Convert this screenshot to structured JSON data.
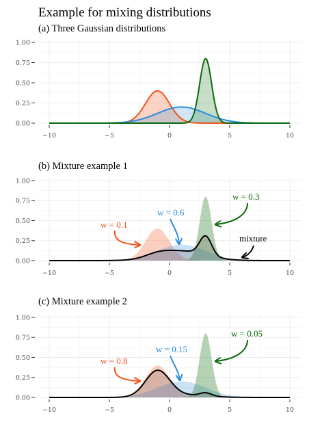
{
  "title": "Example for mixing distributions",
  "colors": {
    "red": "#f2541b",
    "blue": "#2b8cdc",
    "green": "#0a6b0a",
    "black": "#000000",
    "grid": "#ececec",
    "axis_text": "#4d4d4d"
  },
  "chart_data": [
    {
      "type": "area",
      "title": "(a) Three Gaussian distributions",
      "xlim": [
        -10,
        10
      ],
      "ylim": [
        0,
        1
      ],
      "x_ticks": [
        "−10",
        "−5",
        "0",
        "5",
        "10"
      ],
      "y_ticks": [
        "0.00",
        "0.25",
        "0.50",
        "0.75",
        "1.00"
      ],
      "grid": true,
      "series": [
        {
          "distribution": "normal",
          "mean": -1,
          "sd": 1,
          "peak": 0.4,
          "color": "red"
        },
        {
          "distribution": "normal",
          "mean": 1,
          "sd": 2,
          "peak": 0.2,
          "color": "blue"
        },
        {
          "distribution": "normal",
          "mean": 3,
          "sd": 0.5,
          "peak": 0.8,
          "color": "green"
        }
      ],
      "mixture": null
    },
    {
      "type": "area",
      "title": "(b) Mixture example 1",
      "xlim": [
        -10,
        10
      ],
      "ylim": [
        0,
        1
      ],
      "x_ticks": [
        "−10",
        "−5",
        "0",
        "5",
        "10"
      ],
      "y_ticks": [
        "0.00",
        "0.25",
        "0.50",
        "0.75",
        "1.00"
      ],
      "grid": true,
      "weights": [
        0.1,
        0.6,
        0.3
      ],
      "mixture_peak": 0.31,
      "annotations": [
        {
          "text": "w = 0.1",
          "color": "red"
        },
        {
          "text": "w = 0.6",
          "color": "blue"
        },
        {
          "text": "w = 0.3",
          "color": "green"
        },
        {
          "text": "mixture",
          "color": "black"
        }
      ]
    },
    {
      "type": "area",
      "title": "(c) Mixture example 2",
      "xlim": [
        -10,
        10
      ],
      "ylim": [
        0,
        1
      ],
      "x_ticks": [
        "−10",
        "−5",
        "0",
        "5",
        "10"
      ],
      "y_ticks": [
        "0.00",
        "0.25",
        "0.50",
        "0.75",
        "1.00"
      ],
      "grid": true,
      "weights": [
        0.8,
        0.15,
        0.05
      ],
      "mixture_peak": 0.34,
      "annotations": [
        {
          "text": "w = 0.8",
          "color": "red"
        },
        {
          "text": "w = 0.15",
          "color": "blue"
        },
        {
          "text": "w = 0.05",
          "color": "green"
        }
      ]
    }
  ]
}
